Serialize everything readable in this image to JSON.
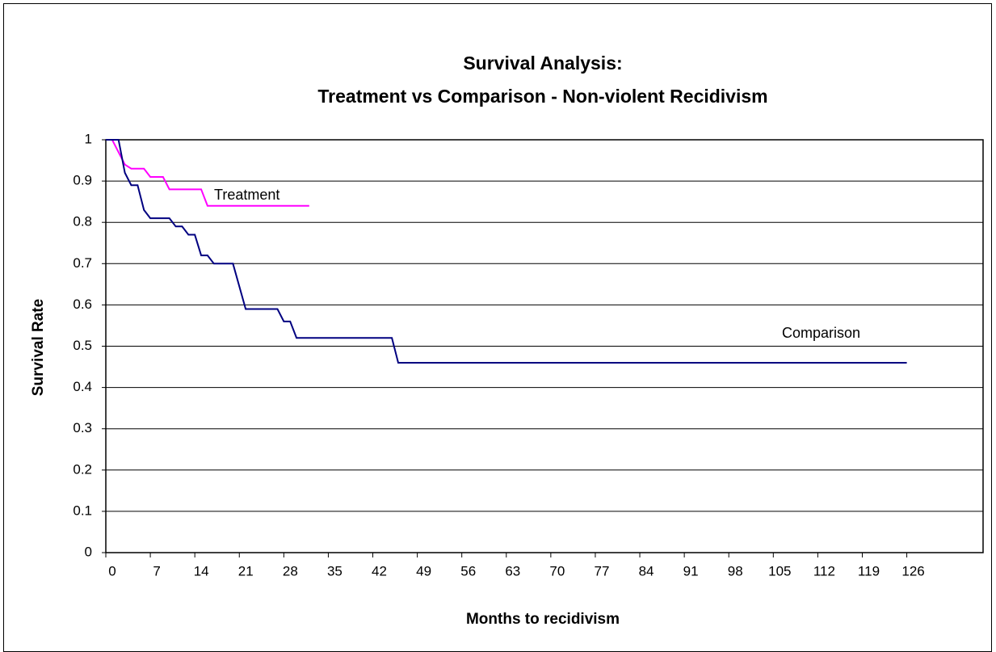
{
  "chart_data": {
    "type": "line",
    "title": "Survival Analysis:",
    "subtitle": "Treatment vs Comparison - Non-violent Recidivism",
    "x_label": "Months to recidivism",
    "y_label": "Survival Rate",
    "xlim": [
      0,
      138
    ],
    "xticks": [
      0,
      7,
      14,
      21,
      28,
      35,
      42,
      49,
      56,
      63,
      70,
      77,
      84,
      91,
      98,
      105,
      112,
      119,
      126
    ],
    "ylim": [
      0,
      1
    ],
    "yticks": [
      0,
      0.1,
      0.2,
      0.3,
      0.4,
      0.5,
      0.6,
      0.7,
      0.8,
      0.9,
      1
    ],
    "grid": true,
    "series": [
      {
        "name": "Treatment",
        "color": "#ff00ff",
        "x": [
          0,
          1,
          3,
          4,
          6,
          7,
          9,
          10,
          15,
          16,
          32
        ],
        "values": [
          1,
          1,
          0.94,
          0.93,
          0.93,
          0.91,
          0.91,
          0.88,
          0.88,
          0.84,
          0.84
        ]
      },
      {
        "name": "Comparison",
        "color": "#000080",
        "x": [
          0,
          2,
          3,
          4,
          5,
          6,
          7,
          10,
          11,
          12,
          13,
          14,
          15,
          16,
          17,
          20,
          22,
          27,
          28,
          29,
          30,
          45,
          46,
          126
        ],
        "values": [
          1,
          1,
          0.92,
          0.89,
          0.89,
          0.83,
          0.81,
          0.81,
          0.79,
          0.79,
          0.77,
          0.77,
          0.72,
          0.72,
          0.7,
          0.7,
          0.59,
          0.59,
          0.56,
          0.56,
          0.52,
          0.52,
          0.46,
          0.46
        ]
      }
    ]
  }
}
